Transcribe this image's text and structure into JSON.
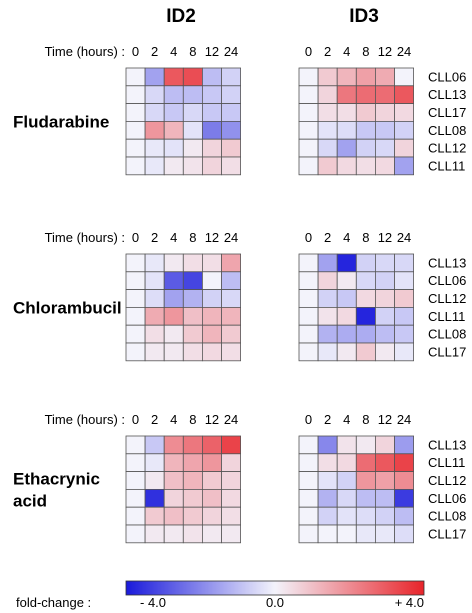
{
  "column_headers": [
    "ID2",
    "ID3"
  ],
  "time_label": "Time (hours) :",
  "times": [
    "0",
    "2",
    "4",
    "8",
    "12",
    "24"
  ],
  "legend": {
    "label": "fold-change :",
    "min_label": "- 4.0",
    "mid_label": "0.0",
    "max_label": "+ 4.0",
    "colors": {
      "low": "#1a1adb",
      "mid": "#f3f3fb",
      "high": "#e8242a"
    }
  },
  "chart_data": {
    "type": "heatmap",
    "value_range": [
      -4.0,
      4.0
    ],
    "x": [
      "0",
      "2",
      "4",
      "8",
      "12",
      "24"
    ],
    "xlabel": "Time (hours)",
    "panels": [
      {
        "drug": [
          "Fludarabine"
        ],
        "rows": [
          "CLL06",
          "CLL13",
          "CLL17",
          "CLL08",
          "CLL12",
          "CLL11"
        ],
        "ID2": [
          [
            0,
            -1.5,
            3.0,
            3.2,
            -1.0,
            -0.6
          ],
          [
            0,
            -0.5,
            -1.0,
            -1.0,
            -0.8,
            -0.6
          ],
          [
            0,
            -0.5,
            -0.8,
            -0.5,
            -0.8,
            -0.8
          ],
          [
            0,
            1.8,
            1.2,
            -0.3,
            -2.2,
            -1.8
          ],
          [
            0,
            -0.2,
            -0.3,
            0.2,
            0.6,
            0.8
          ],
          [
            0,
            -0.2,
            0.2,
            0.3,
            0.6,
            0.4
          ]
        ],
        "ID3": [
          [
            0,
            0.8,
            1.2,
            1.6,
            1.4,
            0.0
          ],
          [
            0,
            0.6,
            2.4,
            2.6,
            2.6,
            3.0
          ],
          [
            0,
            0.4,
            0.4,
            0.8,
            0.6,
            0.5
          ],
          [
            0,
            -0.3,
            -0.4,
            -0.8,
            -0.8,
            -0.6
          ],
          [
            0,
            -0.5,
            -1.5,
            -0.6,
            -0.5,
            0.6
          ],
          [
            0,
            0.8,
            0.5,
            0.4,
            0.5,
            -1.5
          ]
        ]
      },
      {
        "drug": [
          "Chlorambucil"
        ],
        "rows": [
          "CLL13",
          "CLL06",
          "CLL12",
          "CLL11",
          "CLL08",
          "CLL17"
        ],
        "ID2": [
          [
            0,
            -0.2,
            0.2,
            0.4,
            0.4,
            1.5
          ],
          [
            0,
            -0.3,
            -2.8,
            -3.2,
            0.0,
            -1.0
          ],
          [
            0,
            -0.4,
            -1.5,
            -1.2,
            -0.6,
            -0.5
          ],
          [
            0,
            1.4,
            1.8,
            1.0,
            1.2,
            1.2
          ],
          [
            0,
            0.4,
            0.2,
            0.8,
            1.2,
            0.8
          ],
          [
            0,
            0.2,
            0.2,
            0.4,
            0.5,
            0.4
          ]
        ],
        "ID3": [
          [
            0,
            -1.5,
            -3.8,
            -0.6,
            -0.5,
            -0.5
          ],
          [
            0,
            0.6,
            0.2,
            -0.5,
            -0.6,
            -0.3
          ],
          [
            0,
            -0.6,
            -0.8,
            0.5,
            0.6,
            0.8
          ],
          [
            0,
            0.3,
            0.5,
            -3.8,
            -0.6,
            -0.8
          ],
          [
            0,
            -1.2,
            -1.3,
            -1.3,
            -1.0,
            -0.8
          ],
          [
            0,
            -0.2,
            0.2,
            0.8,
            0.2,
            -0.2
          ]
        ]
      },
      {
        "drug": [
          "Ethacrynic",
          "acid"
        ],
        "rows": [
          "CLL13",
          "CLL11",
          "CLL12",
          "CLL06",
          "CLL08",
          "CLL17"
        ],
        "ID2": [
          [
            0,
            -0.8,
            2.0,
            2.4,
            2.8,
            3.4
          ],
          [
            0,
            -0.2,
            1.2,
            1.5,
            1.8,
            0.6
          ],
          [
            0,
            0.2,
            1.0,
            1.2,
            0.8,
            0.6
          ],
          [
            0,
            -3.6,
            0.6,
            0.8,
            1.0,
            0.5
          ],
          [
            0,
            0.8,
            1.0,
            0.8,
            0.6,
            0.4
          ],
          [
            0,
            0.2,
            0.2,
            0.3,
            0.2,
            0.2
          ]
        ],
        "ID3": [
          [
            0,
            -2.0,
            0.3,
            0.2,
            0.6,
            -1.6
          ],
          [
            0,
            0.4,
            0.5,
            2.6,
            3.0,
            3.4
          ],
          [
            0,
            -0.3,
            -0.6,
            1.8,
            1.6,
            2.0
          ],
          [
            0,
            -1.2,
            -0.5,
            -1.0,
            -1.0,
            -3.4
          ],
          [
            0,
            -0.6,
            -0.3,
            -0.4,
            -0.6,
            -1.0
          ],
          [
            0,
            0.0,
            0.0,
            -0.2,
            -0.2,
            -0.4
          ]
        ]
      }
    ]
  }
}
